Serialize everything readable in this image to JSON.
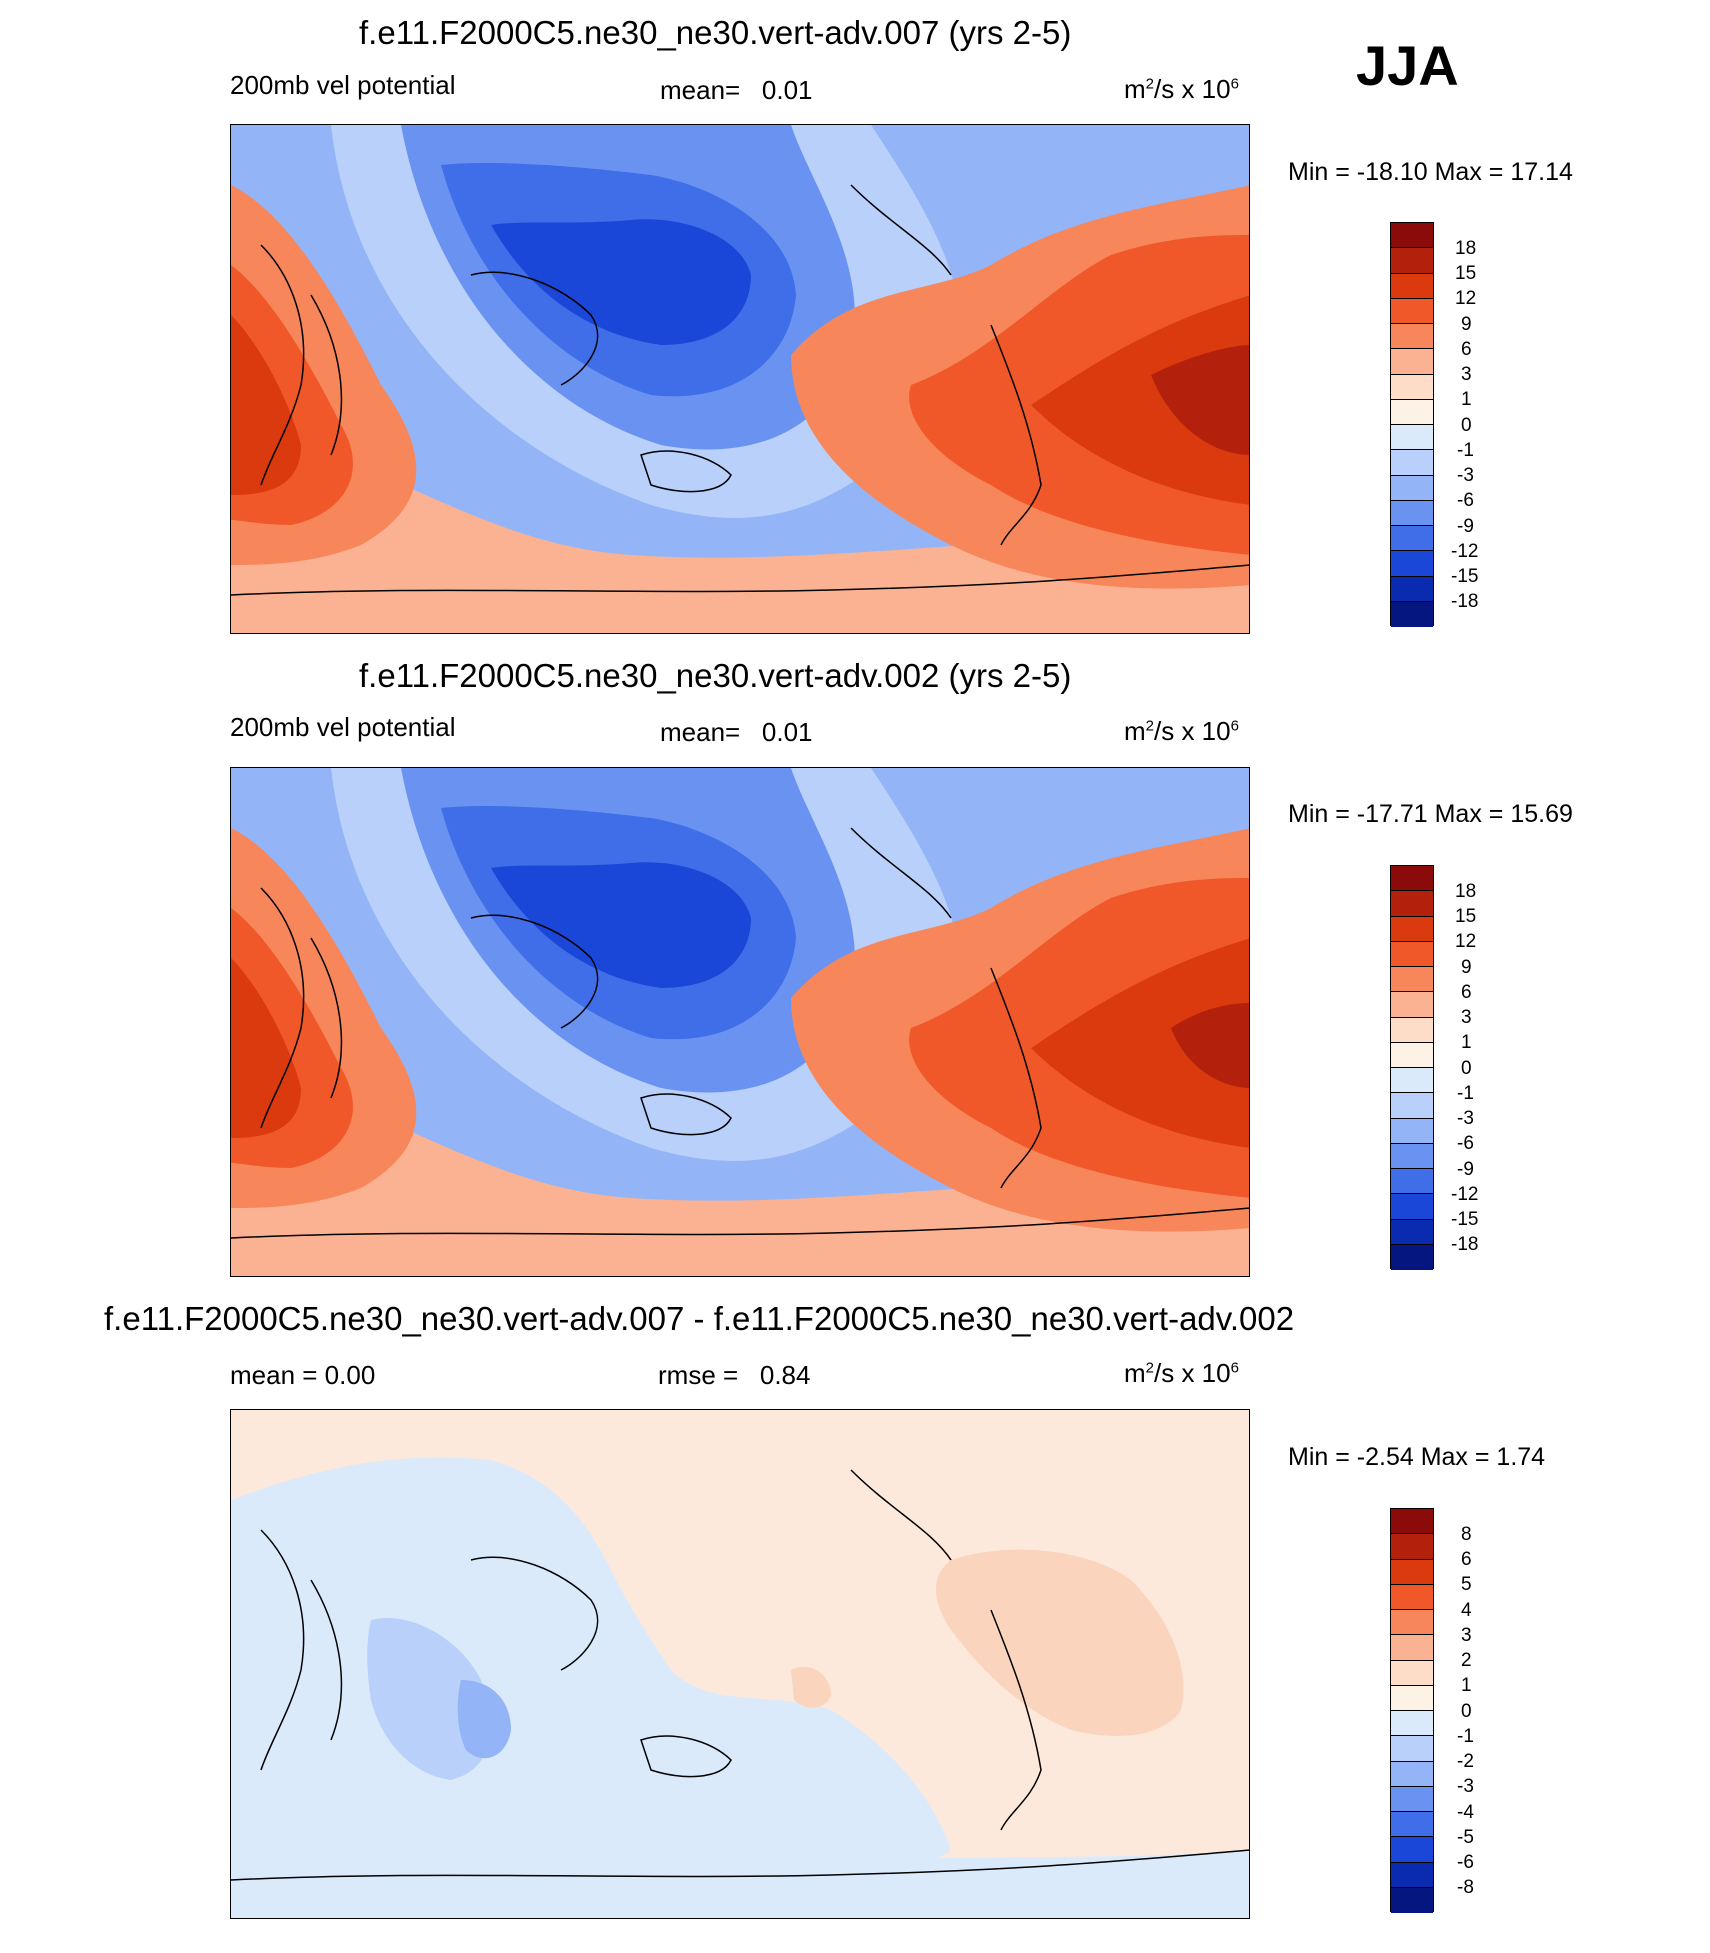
{
  "season": "JJA",
  "chart_data": [
    {
      "type": "heatmap",
      "title": "f.e11.F2000C5.ne30_ne30.vert-adv.007 (yrs 2-5)",
      "left_label": "200mb vel potential",
      "stat_label": "mean=",
      "stat_value": "0.01",
      "units": "m",
      "units_rest": "/s x 10",
      "units_sup1": "2",
      "units_sup2": "6",
      "min_max": "Min = -18.10 Max =  17.14",
      "min": -18.1,
      "max": 17.14,
      "colorbar_levels": [
        "18",
        "15",
        "12",
        "9",
        "6",
        "3",
        "1",
        "0",
        "-1",
        "-3",
        "-6",
        "-9",
        "-12",
        "-15",
        "-18"
      ],
      "colors": [
        "#8b0a0a",
        "#b3200c",
        "#da3a0e",
        "#f0582a",
        "#f7865a",
        "#fbb292",
        "#fddcc8",
        "#fdf2e6",
        "#dbeafb",
        "#b8d0fa",
        "#93b5f7",
        "#6a93f1",
        "#3f6ee8",
        "#1a47d8",
        "#0a2ab0",
        "#061680"
      ]
    },
    {
      "type": "heatmap",
      "title": "f.e11.F2000C5.ne30_ne30.vert-adv.002 (yrs 2-5)",
      "left_label": "200mb vel potential",
      "stat_label": "mean=",
      "stat_value": "0.01",
      "units": "m",
      "units_rest": "/s x 10",
      "units_sup1": "2",
      "units_sup2": "6",
      "min_max": "Min = -17.71 Max =  15.69",
      "min": -17.71,
      "max": 15.69,
      "colorbar_levels": [
        "18",
        "15",
        "12",
        "9",
        "6",
        "3",
        "1",
        "0",
        "-1",
        "-3",
        "-6",
        "-9",
        "-12",
        "-15",
        "-18"
      ],
      "colors": [
        "#8b0a0a",
        "#b3200c",
        "#da3a0e",
        "#f0582a",
        "#f7865a",
        "#fbb292",
        "#fddcc8",
        "#fdf2e6",
        "#dbeafb",
        "#b8d0fa",
        "#93b5f7",
        "#6a93f1",
        "#3f6ee8",
        "#1a47d8",
        "#0a2ab0",
        "#061680"
      ]
    },
    {
      "type": "heatmap",
      "title": "f.e11.F2000C5.ne30_ne30.vert-adv.007 - f.e11.F2000C5.ne30_ne30.vert-adv.002",
      "left_label": "mean =   0.00",
      "stat_label": "rmse =",
      "stat_value": "0.84",
      "units": "m",
      "units_rest": "/s x 10",
      "units_sup1": "2",
      "units_sup2": "6",
      "min_max": "Min =  -2.54 Max =   1.74",
      "min": -2.54,
      "max": 1.74,
      "colorbar_levels": [
        "8",
        "6",
        "5",
        "4",
        "3",
        "2",
        "1",
        "0",
        "-1",
        "-2",
        "-3",
        "-4",
        "-5",
        "-6",
        "-8"
      ],
      "colors": [
        "#8b0a0a",
        "#b3200c",
        "#da3a0e",
        "#f0582a",
        "#f7865a",
        "#fbb292",
        "#fddcc8",
        "#fdf2e6",
        "#dbeafb",
        "#b8d0fa",
        "#93b5f7",
        "#6a93f1",
        "#3f6ee8",
        "#1a47d8",
        "#0a2ab0",
        "#061680"
      ]
    }
  ]
}
